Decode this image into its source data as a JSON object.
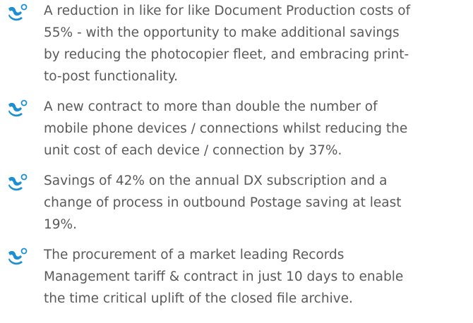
{
  "items": [
    {
      "lines": [
        "A reduction in like for like Document Production costs of",
        "55% - with the opportunity to make additional savings",
        "by reducing the photocopier fleet, and embracing print-",
        "to-post functionality."
      ]
    },
    {
      "lines": [
        "A new contract to more than double the number of",
        "mobile phone devices / connections whilst reducing the",
        "unit cost of each device / connection by 37%."
      ]
    },
    {
      "lines": [
        "Savings of 42% on the annual DX subscription and a",
        "change of process in outbound Postage saving at least",
        "19%."
      ]
    },
    {
      "lines": [
        "The procurement of a market leading Records",
        "Management tariff & contract in just 10 days to enable",
        "the time critical uplift of the closed file archive."
      ]
    }
  ]
}
